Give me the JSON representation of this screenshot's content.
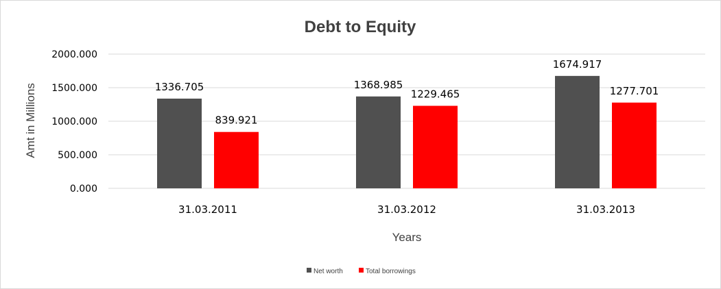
{
  "chart_data": {
    "type": "bar",
    "title": "Debt to Equity",
    "xlabel": "Years",
    "ylabel": "Amt in Millions",
    "categories": [
      "31.03.2011",
      "31.03.2012",
      "31.03.2013"
    ],
    "series": [
      {
        "name": "Net worth",
        "color": "#505050",
        "values": [
          1336.705,
          1368.985,
          1674.917
        ],
        "labels": [
          "1336.705",
          "1368.985",
          "1674.917"
        ]
      },
      {
        "name": "Total borrowings",
        "color": "#ff0000",
        "values": [
          839.921,
          1229.465,
          1277.701
        ],
        "labels": [
          "839.921",
          "1229.465",
          "1277.701"
        ]
      }
    ],
    "ylim": [
      0,
      2000
    ],
    "yticks": [
      0,
      500,
      1000,
      1500,
      2000
    ],
    "ytick_labels": [
      "0.000",
      "500.000",
      "1000.000",
      "1500.000",
      "2000.000"
    ],
    "grid": true,
    "legend_position": "bottom"
  }
}
